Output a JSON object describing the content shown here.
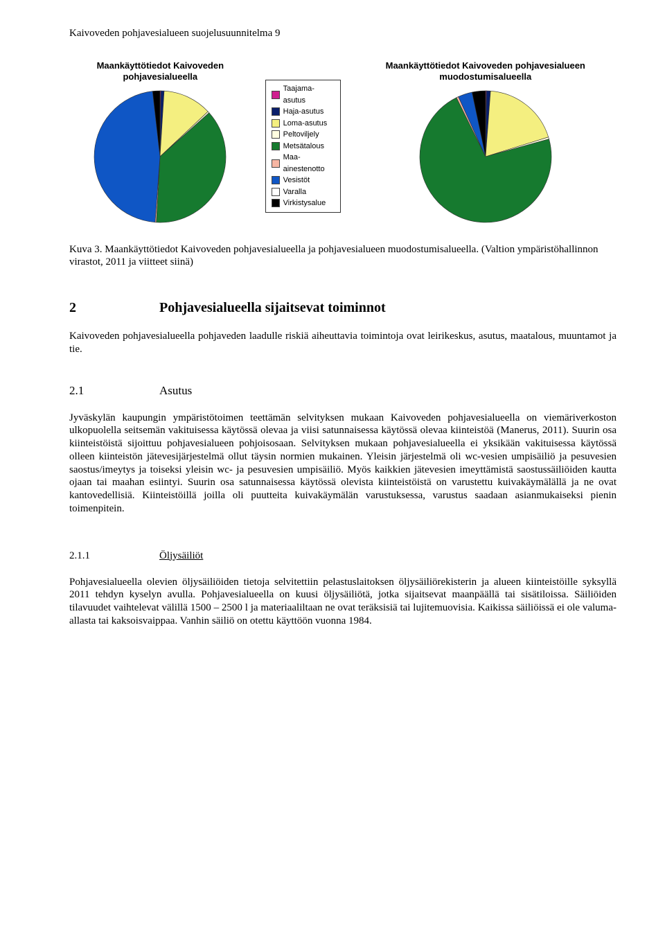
{
  "header": "Kaivoveden pohjavesialueen suojelusuunnitelma   9",
  "chart1": {
    "title": "Maankäyttötiedot Kaivoveden pohjavesialueella",
    "type": "pie",
    "background_color": "#ffffff",
    "stroke_color": "#333333",
    "radius": 95,
    "slices": [
      {
        "label": "Taajama-asutus",
        "value": 0.2,
        "color": "#d02090"
      },
      {
        "label": "Haja-asutus",
        "value": 0.8,
        "color": "#0a1f6b"
      },
      {
        "label": "Loma-asutus",
        "value": 12.0,
        "color": "#f4ef80"
      },
      {
        "label": "Peltoviljely",
        "value": 0.4,
        "color": "#fffde0"
      },
      {
        "label": "Metsätalous",
        "value": 37.5,
        "color": "#167a2f"
      },
      {
        "label": "Maa-ainestenotto",
        "value": 0.3,
        "color": "#f7b6a3"
      },
      {
        "label": "Vesistöt",
        "value": 47.0,
        "color": "#0f56c5"
      },
      {
        "label": "Varalla",
        "value": 0.0,
        "color": "#ffffff"
      },
      {
        "label": "Virkistysalue",
        "value": 1.8,
        "color": "#000000"
      }
    ]
  },
  "legend": {
    "items": [
      {
        "label": "Taajama-asutus",
        "color": "#d02090"
      },
      {
        "label": "Haja-asutus",
        "color": "#0a1f6b"
      },
      {
        "label": "Loma-asutus",
        "color": "#f4ef80"
      },
      {
        "label": "Peltoviljely",
        "color": "#fffde0"
      },
      {
        "label": "Metsätalous",
        "color": "#167a2f"
      },
      {
        "label": "Maa-ainestenotto",
        "color": "#f7b6a3"
      },
      {
        "label": "Vesistöt",
        "color": "#0f56c5"
      },
      {
        "label": "Varalla",
        "color": "#ffffff"
      },
      {
        "label": "Virkistysalue",
        "color": "#000000"
      }
    ]
  },
  "chart2": {
    "title": "Maankäyttötiedot Kaivoveden pohjavesialueen muodostumisalueella",
    "type": "pie",
    "background_color": "#ffffff",
    "stroke_color": "#333333",
    "radius": 95,
    "slices": [
      {
        "label": "Taajama-asutus",
        "value": 0.2,
        "color": "#d02090"
      },
      {
        "label": "Haja-asutus",
        "value": 1.0,
        "color": "#0a1f6b"
      },
      {
        "label": "Loma-asutus",
        "value": 19.0,
        "color": "#f4ef80"
      },
      {
        "label": "Peltoviljely",
        "value": 0.5,
        "color": "#fffde0"
      },
      {
        "label": "Metsätalous",
        "value": 72.0,
        "color": "#167a2f"
      },
      {
        "label": "Maa-ainestenotto",
        "value": 0.5,
        "color": "#f7b6a3"
      },
      {
        "label": "Vesistöt",
        "value": 3.5,
        "color": "#0f56c5"
      },
      {
        "label": "Varalla",
        "value": 0.0,
        "color": "#ffffff"
      },
      {
        "label": "Virkistysalue",
        "value": 3.3,
        "color": "#000000"
      }
    ]
  },
  "caption": "Kuva 3. Maankäyttötiedot Kaivoveden pohjavesialueella ja pohjavesialueen muodostumisalueella. (Valtion ympäristöhallinnon virastot, 2011 ja viitteet siinä)",
  "section2": {
    "num": "2",
    "title": "Pohjavesialueella sijaitsevat toiminnot",
    "body": "Kaivoveden pohjavesialueella pohjaveden laadulle riskiä aiheuttavia toimintoja ovat leirikeskus, asutus, maatalous, muuntamot ja tie."
  },
  "section21": {
    "num": "2.1",
    "title": "Asutus",
    "body": "Jyväskylän kaupungin ympäristötoimen teettämän selvityksen mukaan Kaivoveden pohjavesialueella on viemäriverkoston ulkopuolella seitsemän vakituisessa käytössä olevaa ja viisi satunnaisessa käytössä olevaa kiinteistöä (Manerus, 2011). Suurin osa kiinteistöistä sijoittuu pohjavesialueen pohjoisosaan. Selvityksen mukaan pohjavesialueella ei yksikään vakituisessa käytössä olleen kiinteistön jätevesijärjestelmä ollut täysin normien mukainen. Yleisin järjestelmä oli wc-vesien umpisäiliö ja pesuvesien saostus/imeytys ja toiseksi yleisin wc- ja pesuvesien umpisäiliö. Myös kaikkien jätevesien imeyttämistä saostussäiliöiden kautta ojaan tai maahan esiintyi. Suurin osa satunnaisessa käytössä olevista kiinteistöistä on varustettu kuivakäymälällä ja ne ovat kantovedellisiä. Kiinteistöillä joilla oli puutteita kuivakäymälän varustuksessa, varustus saadaan asianmukaiseksi pienin toimenpitein."
  },
  "section211": {
    "num": "2.1.1",
    "title": "Öljysäiliöt",
    "body": "Pohjavesialueella olevien öljysäiliöiden tietoja selvitettiin pelastuslaitoksen öljysäiliörekisterin ja alueen kiinteistöille syksyllä 2011 tehdyn kyselyn avulla. Pohjavesialueella on kuusi öljysäiliötä, jotka sijaitsevat maanpäällä tai sisätiloissa. Säiliöiden tilavuudet vaihtelevat välillä 1500 – 2500 l ja materiaaliltaan ne ovat teräksisiä tai lujitemuovisia. Kaikissa säiliöissä ei ole valuma-allasta tai kaksoisvaippaa. Vanhin säiliö on otettu käyttöön vuonna 1984."
  }
}
